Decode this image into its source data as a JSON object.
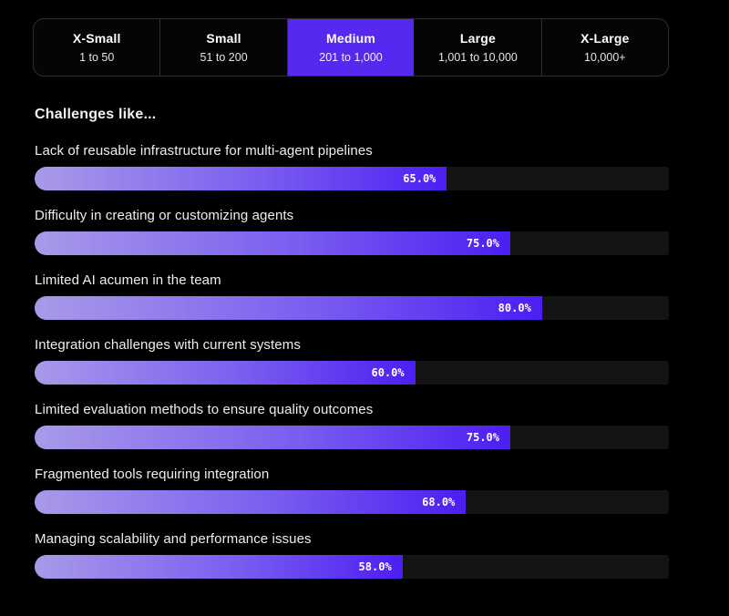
{
  "size_tabs": {
    "items": [
      {
        "label": "X-Small",
        "range": "1 to 50",
        "selected": false
      },
      {
        "label": "Small",
        "range": "51 to 200",
        "selected": false
      },
      {
        "label": "Medium",
        "range": "201 to 1,000",
        "selected": true
      },
      {
        "label": "Large",
        "range": "1,001 to 10,000",
        "selected": false
      },
      {
        "label": "X-Large",
        "range": "10,000+",
        "selected": false
      }
    ],
    "selected_color": "#5628f0"
  },
  "section": {
    "heading": "Challenges like..."
  },
  "chart_data": {
    "type": "bar",
    "orientation": "horizontal",
    "title": "Challenges like...",
    "categories": [
      "Lack of reusable infrastructure for multi-agent pipelines",
      "Difficulty in creating or customizing agents",
      "Limited AI acumen in the team",
      "Integration challenges with current systems",
      "Limited evaluation methods to ensure quality outcomes",
      "Fragmented tools requiring integration",
      "Managing scalability and performance issues"
    ],
    "values": [
      65.0,
      75.0,
      80.0,
      60.0,
      75.0,
      68.0,
      58.0
    ],
    "value_labels": [
      "65.0%",
      "75.0%",
      "80.0%",
      "60.0%",
      "75.0%",
      "68.0%",
      "58.0%"
    ],
    "xlim": [
      0,
      100
    ],
    "grid": false,
    "legend": false,
    "bar_gradient": [
      "#a99ae9",
      "#4c1ef2"
    ],
    "track_color": "#141414",
    "background_color": "#000000"
  }
}
